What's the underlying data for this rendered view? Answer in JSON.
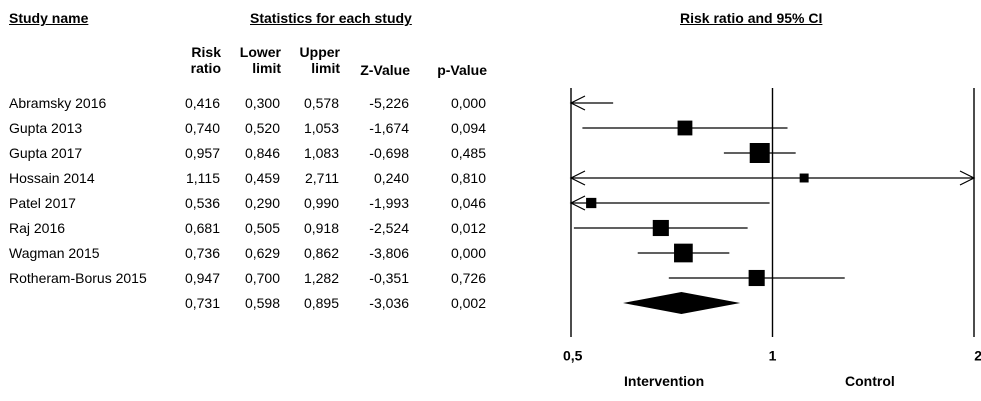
{
  "headers": {
    "study_name": "Study name",
    "statistics": "Statistics for each study",
    "plot": "Risk ratio and 95% CI"
  },
  "columns": {
    "risk_ratio": [
      "Risk",
      "ratio"
    ],
    "lower_limit": [
      "Lower",
      "limit"
    ],
    "upper_limit": [
      "Upper",
      "limit"
    ],
    "z_value": "Z-Value",
    "p_value": "p-Value"
  },
  "chart_data": {
    "type": "forest",
    "x_scale": "log",
    "x_range": [
      0.5,
      2
    ],
    "x_ticks": [
      {
        "value": 0.5,
        "label": "0,5"
      },
      {
        "value": 1,
        "label": "1"
      },
      {
        "value": 2,
        "label": "2"
      }
    ],
    "studies": [
      {
        "name": "Abramsky 2016",
        "rr": "0,416",
        "lower": "0,300",
        "upper": "0,578",
        "z": "-5,226",
        "p": "0,000",
        "rr_v": 0.416,
        "lower_v": 0.3,
        "upper_v": 0.578,
        "weight": 0
      },
      {
        "name": "Gupta 2013",
        "rr": "0,740",
        "lower": "0,520",
        "upper": "1,053",
        "z": "-1,674",
        "p": "0,094",
        "rr_v": 0.74,
        "lower_v": 0.52,
        "upper_v": 1.053,
        "weight": 0.6
      },
      {
        "name": "Gupta 2017",
        "rr": "0,957",
        "lower": "0,846",
        "upper": "1,083",
        "z": "-0,698",
        "p": "0,485",
        "rr_v": 0.957,
        "lower_v": 0.846,
        "upper_v": 1.083,
        "weight": 1
      },
      {
        "name": "Hossain 2014",
        "rr": "1,115",
        "lower": "0,459",
        "upper": "2,711",
        "z": "0,240",
        "p": "0,810",
        "rr_v": 1.115,
        "lower_v": 0.459,
        "upper_v": 2.711,
        "weight": 0.15
      },
      {
        "name": "Patel 2017",
        "rr": "0,536",
        "lower": "0,290",
        "upper": "0,990",
        "z": "-1,993",
        "p": "0,046",
        "rr_v": 0.536,
        "lower_v": 0.29,
        "upper_v": 0.99,
        "weight": 0.25
      },
      {
        "name": "Raj 2016",
        "rr": "0,681",
        "lower": "0,505",
        "upper": "0,918",
        "z": "-2,524",
        "p": "0,012",
        "rr_v": 0.681,
        "lower_v": 0.505,
        "upper_v": 0.918,
        "weight": 0.7
      },
      {
        "name": "Wagman 2015",
        "rr": "0,736",
        "lower": "0,629",
        "upper": "0,862",
        "z": "-3,806",
        "p": "0,000",
        "rr_v": 0.736,
        "lower_v": 0.629,
        "upper_v": 0.862,
        "weight": 0.9
      },
      {
        "name": "Rotheram-Borus 2015",
        "rr": "0,947",
        "lower": "0,700",
        "upper": "1,282",
        "z": "-0,351",
        "p": "0,726",
        "rr_v": 0.947,
        "lower_v": 0.7,
        "upper_v": 1.282,
        "weight": 0.7
      }
    ],
    "summary": {
      "rr": "0,731",
      "lower": "0,598",
      "upper": "0,895",
      "z": "-3,036",
      "p": "0,002",
      "rr_v": 0.731,
      "lower_v": 0.598,
      "upper_v": 0.895
    },
    "favours_left": "Intervention",
    "favours_right": "Control"
  }
}
